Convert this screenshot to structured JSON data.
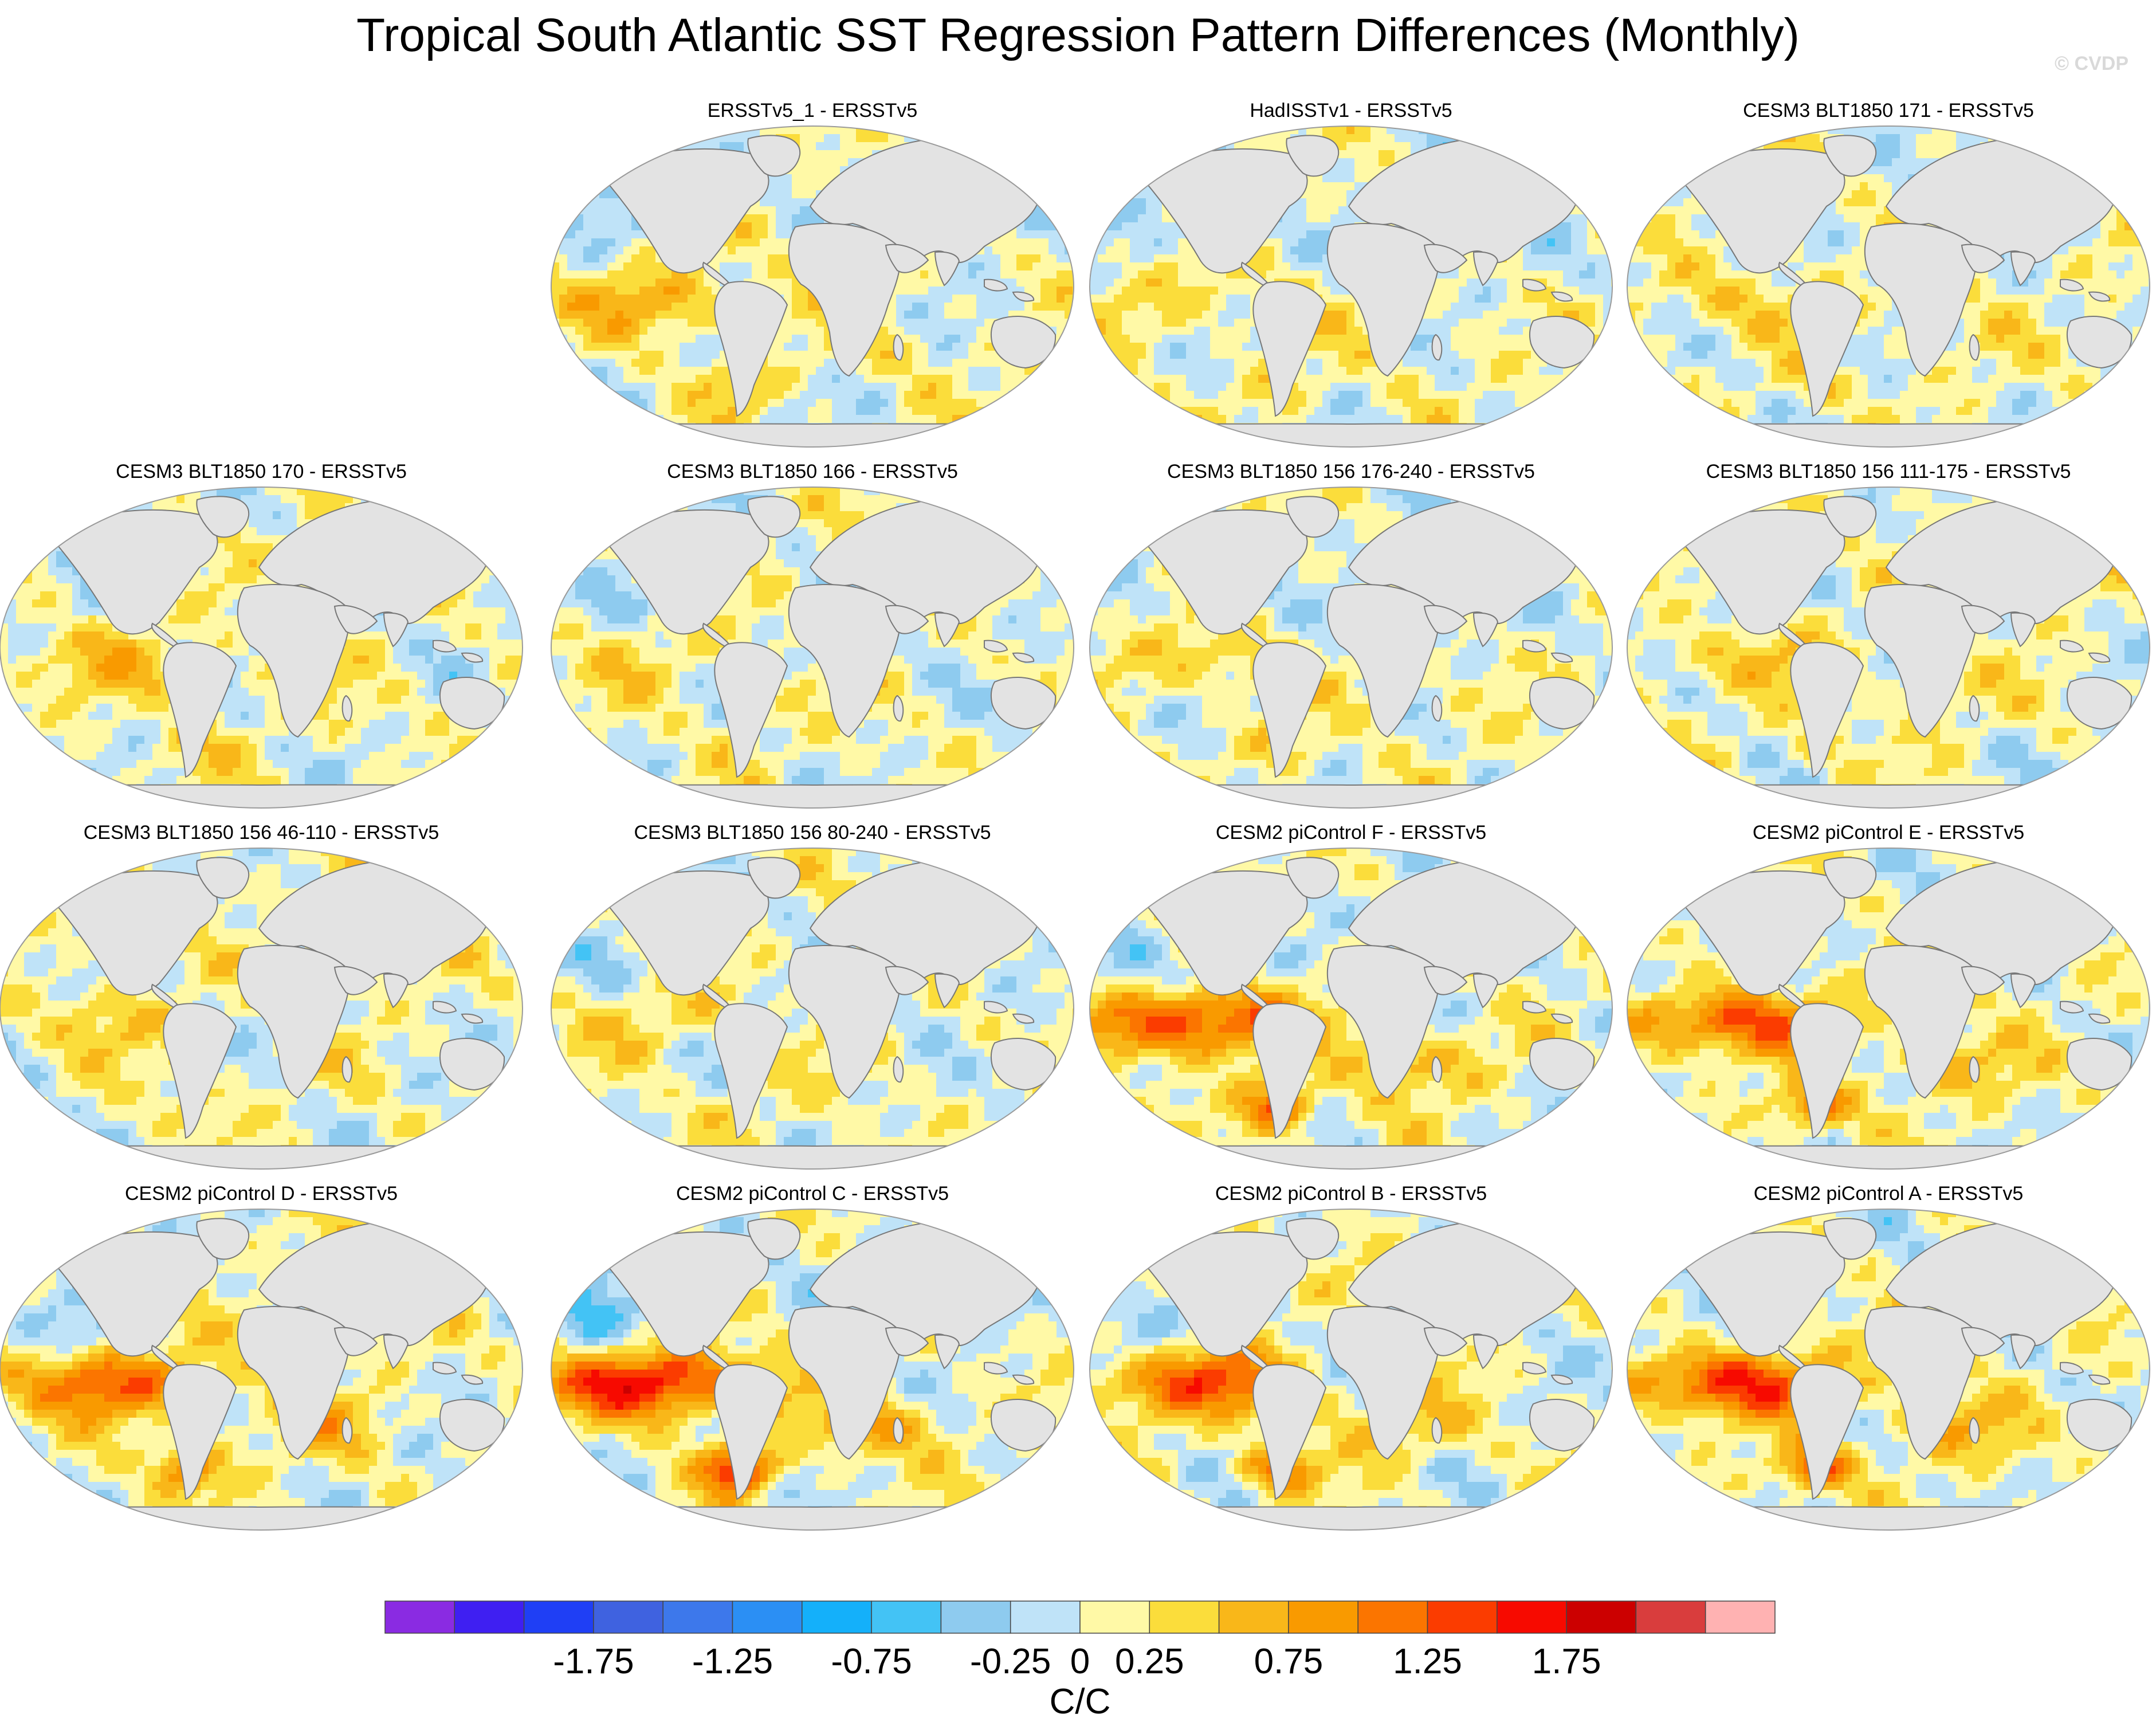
{
  "title": "Tropical South Atlantic SST Regression Pattern Differences (Monthly)",
  "watermark": "© CVDP",
  "colors": {
    "land": "#e3e3e3",
    "coast": "#777777",
    "panel_border": "#9a9a9a"
  },
  "chart_data": {
    "type": "heatmap",
    "projection": "Robinson",
    "layout": "4 rows x 4 columns (first slot of row 1 empty)",
    "panels": [
      {
        "row": 0,
        "col": 1,
        "title": "ERSSTv5_1 - ERSSTv5",
        "amp": 0.35,
        "seed": 11
      },
      {
        "row": 0,
        "col": 2,
        "title": "HadISSTv1 - ERSSTv5",
        "amp": 0.2,
        "seed": 23
      },
      {
        "row": 0,
        "col": 3,
        "title": "CESM3 BLT1850 171 - ERSSTv5",
        "amp": 0.2,
        "seed": 37
      },
      {
        "row": 1,
        "col": 0,
        "title": "CESM3 BLT1850 170 - ERSSTv5",
        "amp": 0.25,
        "seed": 41
      },
      {
        "row": 1,
        "col": 1,
        "title": "CESM3 BLT1850 166 - ERSSTv5",
        "amp": 0.15,
        "seed": 53
      },
      {
        "row": 1,
        "col": 2,
        "title": "CESM3 BLT1850 156 176-240 - ERSSTv5",
        "amp": 0.25,
        "seed": 67
      },
      {
        "row": 1,
        "col": 3,
        "title": "CESM3 BLT1850 156 111-175 - ERSSTv5",
        "amp": 0.25,
        "seed": 71
      },
      {
        "row": 2,
        "col": 0,
        "title": "CESM3 BLT1850 156 46-110 - ERSSTv5",
        "amp": 0.2,
        "seed": 83
      },
      {
        "row": 2,
        "col": 1,
        "title": "CESM3 BLT1850 156 80-240 - ERSSTv5",
        "amp": 0.2,
        "seed": 97
      },
      {
        "row": 2,
        "col": 2,
        "title": "CESM2 piControl F - ERSSTv5",
        "amp": 0.9,
        "seed": 101
      },
      {
        "row": 2,
        "col": 3,
        "title": "CESM2 piControl E - ERSSTv5",
        "amp": 0.75,
        "seed": 113
      },
      {
        "row": 3,
        "col": 0,
        "title": "CESM2 piControl D - ERSSTv5",
        "amp": 0.7,
        "seed": 127
      },
      {
        "row": 3,
        "col": 1,
        "title": "CESM2 piControl C - ERSSTv5",
        "amp": 1.0,
        "seed": 131
      },
      {
        "row": 3,
        "col": 2,
        "title": "CESM2 piControl B - ERSSTv5",
        "amp": 0.75,
        "seed": 149
      },
      {
        "row": 3,
        "col": 3,
        "title": "CESM2 piControl A - ERSSTv5",
        "amp": 0.85,
        "seed": 157
      }
    ],
    "colorbar": {
      "levels": [
        -2.25,
        -2.0,
        -1.75,
        -1.5,
        -1.25,
        -1.0,
        -0.75,
        -0.5,
        -0.25,
        0,
        0.25,
        0.5,
        0.75,
        1.0,
        1.25,
        1.5,
        1.75,
        2.0,
        2.25
      ],
      "colors": [
        "#8a2be2",
        "#3f1ff2",
        "#1f3ff5",
        "#3f62e0",
        "#3d78eb",
        "#2b8ff4",
        "#14b0fa",
        "#43c3f5",
        "#8ecbef",
        "#bfe3f8",
        "#fff9a6",
        "#fbdd3b",
        "#f9b719",
        "#f99a00",
        "#fb7500",
        "#fb3c00",
        "#f70a00",
        "#cc0000",
        "#d93d3d",
        "#ffb2b2"
      ],
      "tick_labels": [
        "-1.75",
        "-1.25",
        "-0.75",
        "-0.25",
        "0",
        "0.25",
        "0.75",
        "1.25",
        "1.75"
      ],
      "label": "C/C"
    }
  }
}
